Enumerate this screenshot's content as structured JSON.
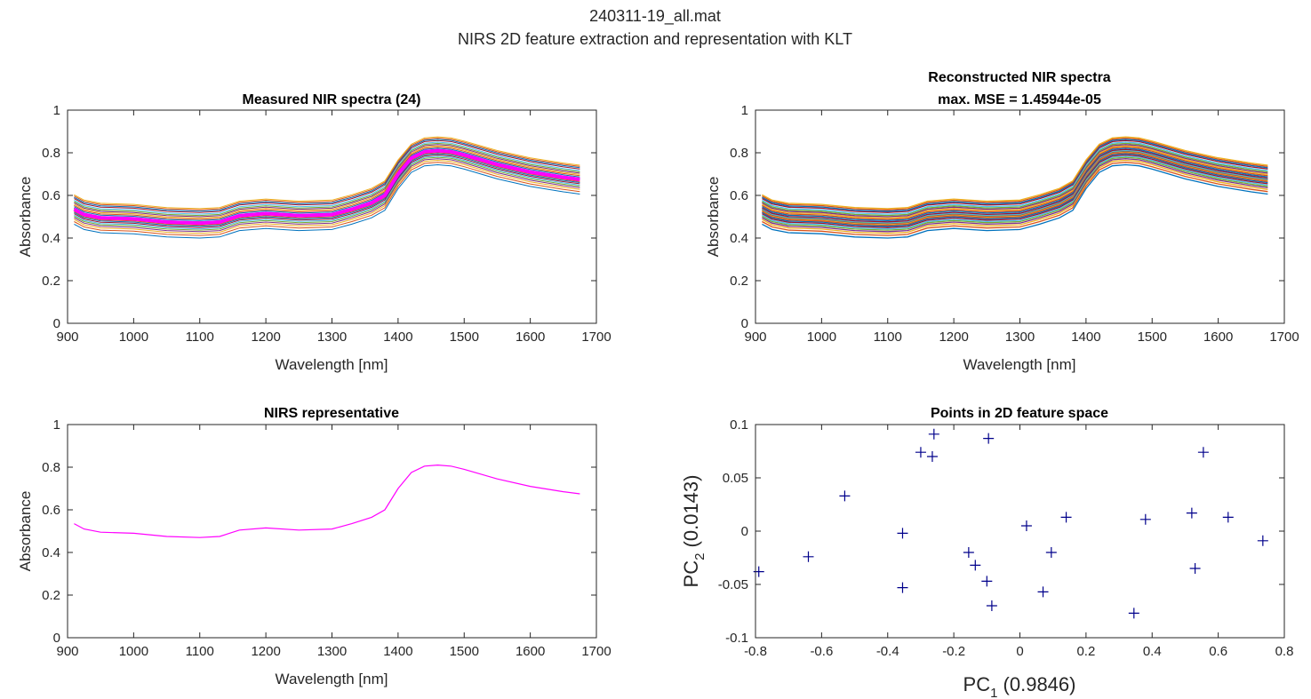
{
  "figure": {
    "title_line1": "240311-19_all.mat",
    "title_line2": "NIRS 2D feature extraction and representation with KLT"
  },
  "chart_data": [
    {
      "type": "line",
      "title": "Measured NIR spectra (24)",
      "xlabel": "Wavelength [nm]",
      "ylabel": "Absorbance",
      "xlim": [
        900,
        1700
      ],
      "ylim": [
        0,
        1
      ],
      "xticks": [
        900,
        1000,
        1100,
        1200,
        1300,
        1400,
        1500,
        1600,
        1700
      ],
      "yticks": [
        0,
        0.2,
        0.4,
        0.6,
        0.8,
        1
      ],
      "grid": false,
      "x": [
        910,
        925,
        950,
        1000,
        1050,
        1100,
        1130,
        1160,
        1200,
        1250,
        1300,
        1330,
        1360,
        1380,
        1400,
        1420,
        1440,
        1460,
        1480,
        1500,
        1550,
        1600,
        1650,
        1675
      ],
      "base_profile": [
        0.535,
        0.51,
        0.495,
        0.49,
        0.475,
        0.47,
        0.475,
        0.505,
        0.515,
        0.505,
        0.51,
        0.535,
        0.565,
        0.6,
        0.7,
        0.775,
        0.805,
        0.81,
        0.805,
        0.79,
        0.745,
        0.71,
        0.685,
        0.675
      ],
      "offsets": [
        -0.07,
        -0.058,
        -0.048,
        -0.04,
        -0.033,
        -0.027,
        -0.021,
        -0.015,
        -0.01,
        -0.005,
        -0.002,
        0.0,
        0.002,
        0.006,
        0.012,
        0.018,
        0.024,
        0.03,
        0.036,
        0.042,
        0.05,
        0.056,
        0.062,
        0.068
      ],
      "colors": [
        "#0072BD",
        "#D95319",
        "#EDB120",
        "#7E2F8E",
        "#77AC30",
        "#4DBEEE",
        "#A2142F",
        "#0072BD",
        "#D95319",
        "#EDB120",
        "#7E2F8E",
        "#77AC30",
        "#4DBEEE",
        "#A2142F",
        "#0072BD",
        "#D95319",
        "#EDB120",
        "#7E2F8E",
        "#77AC30",
        "#4DBEEE",
        "#A2142F",
        "#0072BD",
        "#D95319",
        "#EDB120"
      ],
      "highlight": {
        "color": "#FF00FF",
        "note": "representative spectrum overlaid"
      }
    },
    {
      "type": "line",
      "title_line1": "Reconstructed NIR spectra",
      "title_line2": "max. MSE = 1.45944e-05",
      "xlabel": "Wavelength [nm]",
      "ylabel": "Absorbance",
      "xlim": [
        900,
        1700
      ],
      "ylim": [
        0,
        1
      ],
      "xticks": [
        900,
        1000,
        1100,
        1200,
        1300,
        1400,
        1500,
        1600,
        1700
      ],
      "yticks": [
        0,
        0.2,
        0.4,
        0.6,
        0.8,
        1
      ],
      "grid": false
    },
    {
      "type": "line",
      "title": "NIRS representative",
      "xlabel": "Wavelength [nm]",
      "ylabel": "Absorbance",
      "xlim": [
        900,
        1700
      ],
      "ylim": [
        0,
        1
      ],
      "xticks": [
        900,
        1000,
        1100,
        1200,
        1300,
        1400,
        1500,
        1600,
        1700
      ],
      "yticks": [
        0,
        0.2,
        0.4,
        0.6,
        0.8,
        1
      ],
      "grid": false,
      "color": "#FF00FF",
      "x": [
        910,
        925,
        950,
        1000,
        1050,
        1100,
        1130,
        1160,
        1200,
        1250,
        1300,
        1330,
        1360,
        1380,
        1400,
        1420,
        1440,
        1460,
        1480,
        1500,
        1550,
        1600,
        1650,
        1675
      ],
      "y": [
        0.535,
        0.51,
        0.495,
        0.49,
        0.475,
        0.47,
        0.475,
        0.505,
        0.515,
        0.505,
        0.51,
        0.535,
        0.565,
        0.6,
        0.7,
        0.775,
        0.805,
        0.81,
        0.805,
        0.79,
        0.745,
        0.71,
        0.685,
        0.675
      ]
    },
    {
      "type": "scatter",
      "title": "Points in 2D feature space",
      "xlabel_main": "PC",
      "xlabel_sub": "1",
      "xlabel_rest": " (0.9846)",
      "ylabel_main": "PC",
      "ylabel_sub": "2",
      "ylabel_rest": " (0.0143)",
      "xlim": [
        -0.8,
        0.8
      ],
      "ylim": [
        -0.1,
        0.1
      ],
      "xticks": [
        -0.8,
        -0.6,
        -0.4,
        -0.2,
        0,
        0.2,
        0.4,
        0.6,
        0.8
      ],
      "yticks": [
        -0.1,
        -0.05,
        0,
        0.05,
        0.1
      ],
      "marker": "+",
      "color": "#00008B",
      "points": [
        [
          -0.79,
          -0.038
        ],
        [
          -0.64,
          -0.024
        ],
        [
          -0.53,
          0.033
        ],
        [
          -0.355,
          -0.002
        ],
        [
          -0.355,
          -0.053
        ],
        [
          -0.3,
          0.074
        ],
        [
          -0.265,
          0.07
        ],
        [
          -0.26,
          0.091
        ],
        [
          -0.155,
          -0.02
        ],
        [
          -0.135,
          -0.032
        ],
        [
          -0.1,
          -0.047
        ],
        [
          -0.095,
          0.087
        ],
        [
          -0.085,
          -0.07
        ],
        [
          0.02,
          0.005
        ],
        [
          0.07,
          -0.057
        ],
        [
          0.095,
          -0.02
        ],
        [
          0.14,
          0.013
        ],
        [
          0.345,
          -0.077
        ],
        [
          0.38,
          0.011
        ],
        [
          0.52,
          0.017
        ],
        [
          0.53,
          -0.035
        ],
        [
          0.555,
          0.074
        ],
        [
          0.63,
          0.013
        ],
        [
          0.735,
          -0.009
        ]
      ]
    }
  ]
}
